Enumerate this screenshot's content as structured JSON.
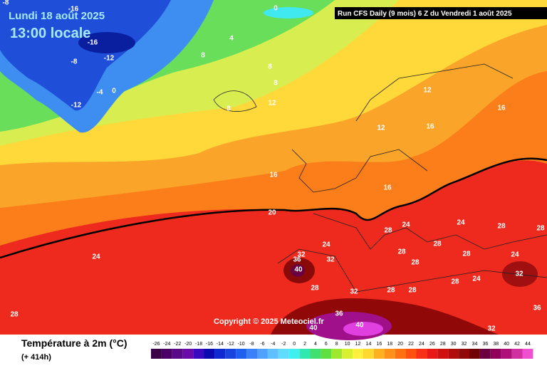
{
  "header": {
    "date": "Lundi 18 août 2025",
    "time": "13:00 locale",
    "run": "Run CFS Daily (9 mois) 6 Z du Vendredi 1 août 2025"
  },
  "copyright": "Copyright © 2025 Meteociel.fr",
  "legend": {
    "title": "Température à 2m (°C)",
    "lead": "(+ 414h)",
    "ticks": [
      -26,
      -24,
      -22,
      -20,
      -18,
      -16,
      -14,
      -12,
      -10,
      -8,
      -6,
      -4,
      -2,
      0,
      2,
      4,
      6,
      8,
      10,
      12,
      14,
      16,
      18,
      20,
      22,
      24,
      26,
      28,
      30,
      32,
      34,
      36,
      38,
      40,
      42,
      44
    ],
    "colors": [
      "#3a0048",
      "#4b0068",
      "#5a0a88",
      "#6a0aa8",
      "#3a0ac0",
      "#0a0ab0",
      "#1028d0",
      "#1a44e0",
      "#2060f0",
      "#3a80f8",
      "#50a0ff",
      "#60c0ff",
      "#60dcff",
      "#40f0f0",
      "#30e8b0",
      "#40e070",
      "#60e040",
      "#a0e830",
      "#d8f030",
      "#fff040",
      "#ffd830",
      "#ffb020",
      "#ff9018",
      "#ff7010",
      "#ff5010",
      "#f83018",
      "#e81818",
      "#d01010",
      "#b00c0c",
      "#900808",
      "#700404",
      "#6a0040",
      "#90005a",
      "#b0107a",
      "#d030a0",
      "#f050d0"
    ]
  },
  "map_labels": [
    -8,
    -16,
    -16,
    -8,
    -12,
    -4,
    0,
    -12,
    0,
    4,
    8,
    8,
    8,
    8,
    12,
    12,
    16,
    12,
    16,
    16,
    16,
    20,
    24,
    28,
    24,
    28,
    24,
    24,
    28,
    28,
    32,
    36,
    40,
    32,
    28,
    28,
    28,
    28,
    24,
    32,
    28,
    32,
    28,
    28,
    28,
    24,
    36,
    36,
    40,
    40,
    32
  ]
}
